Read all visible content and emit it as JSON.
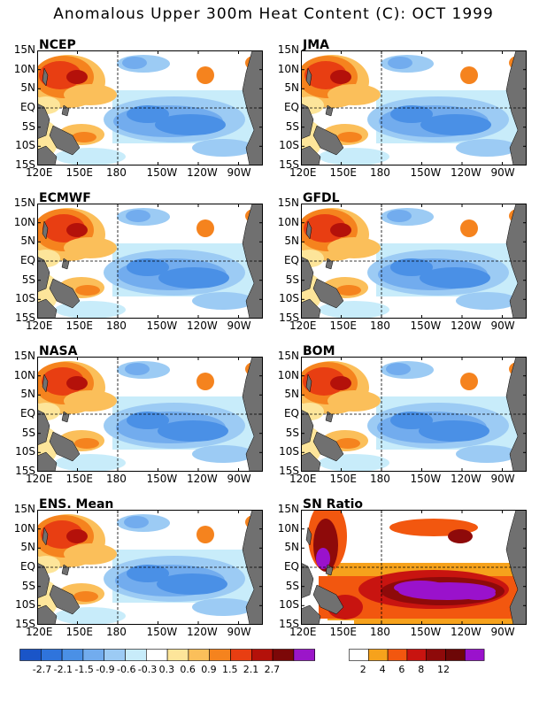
{
  "title": "Anomalous Upper 300m Heat Content (C): OCT 1999",
  "panels": [
    {
      "name": "NCEP"
    },
    {
      "name": "JMA"
    },
    {
      "name": "ECMWF"
    },
    {
      "name": "GFDL"
    },
    {
      "name": "NASA"
    },
    {
      "name": "BOM"
    },
    {
      "name": "ENS. Mean"
    },
    {
      "name": "SN Ratio"
    }
  ],
  "lat_labels": [
    "15N",
    "10N",
    "5N",
    "EQ",
    "5S",
    "10S",
    "15S"
  ],
  "lon_labels": [
    "120E",
    "150E",
    "180",
    "150W",
    "120W",
    "90W"
  ],
  "anomaly_colorbar": {
    "labels": [
      "-2.7",
      "-2.1",
      "-1.5",
      "-0.9",
      "-0.6",
      "-0.3",
      "0.3",
      "0.6",
      "0.9",
      "1.5",
      "2.1",
      "2.7"
    ],
    "colors": [
      "#1a55c8",
      "#2f74dc",
      "#4a90e6",
      "#72acee",
      "#9ccbf4",
      "#c8ecfa",
      "#ffffff",
      "#fde59a",
      "#fbbf5a",
      "#f5831e",
      "#e83e12",
      "#b4110a",
      "#7c0808",
      "#9b16c9"
    ]
  },
  "sn_colorbar": {
    "labels": [
      "2",
      "4",
      "6",
      "8",
      "12"
    ],
    "colors": [
      "#ffffff",
      "#f6a21c",
      "#f2570f",
      "#c81410",
      "#8e0a0a",
      "#6d0707",
      "#9a12cc"
    ]
  }
}
